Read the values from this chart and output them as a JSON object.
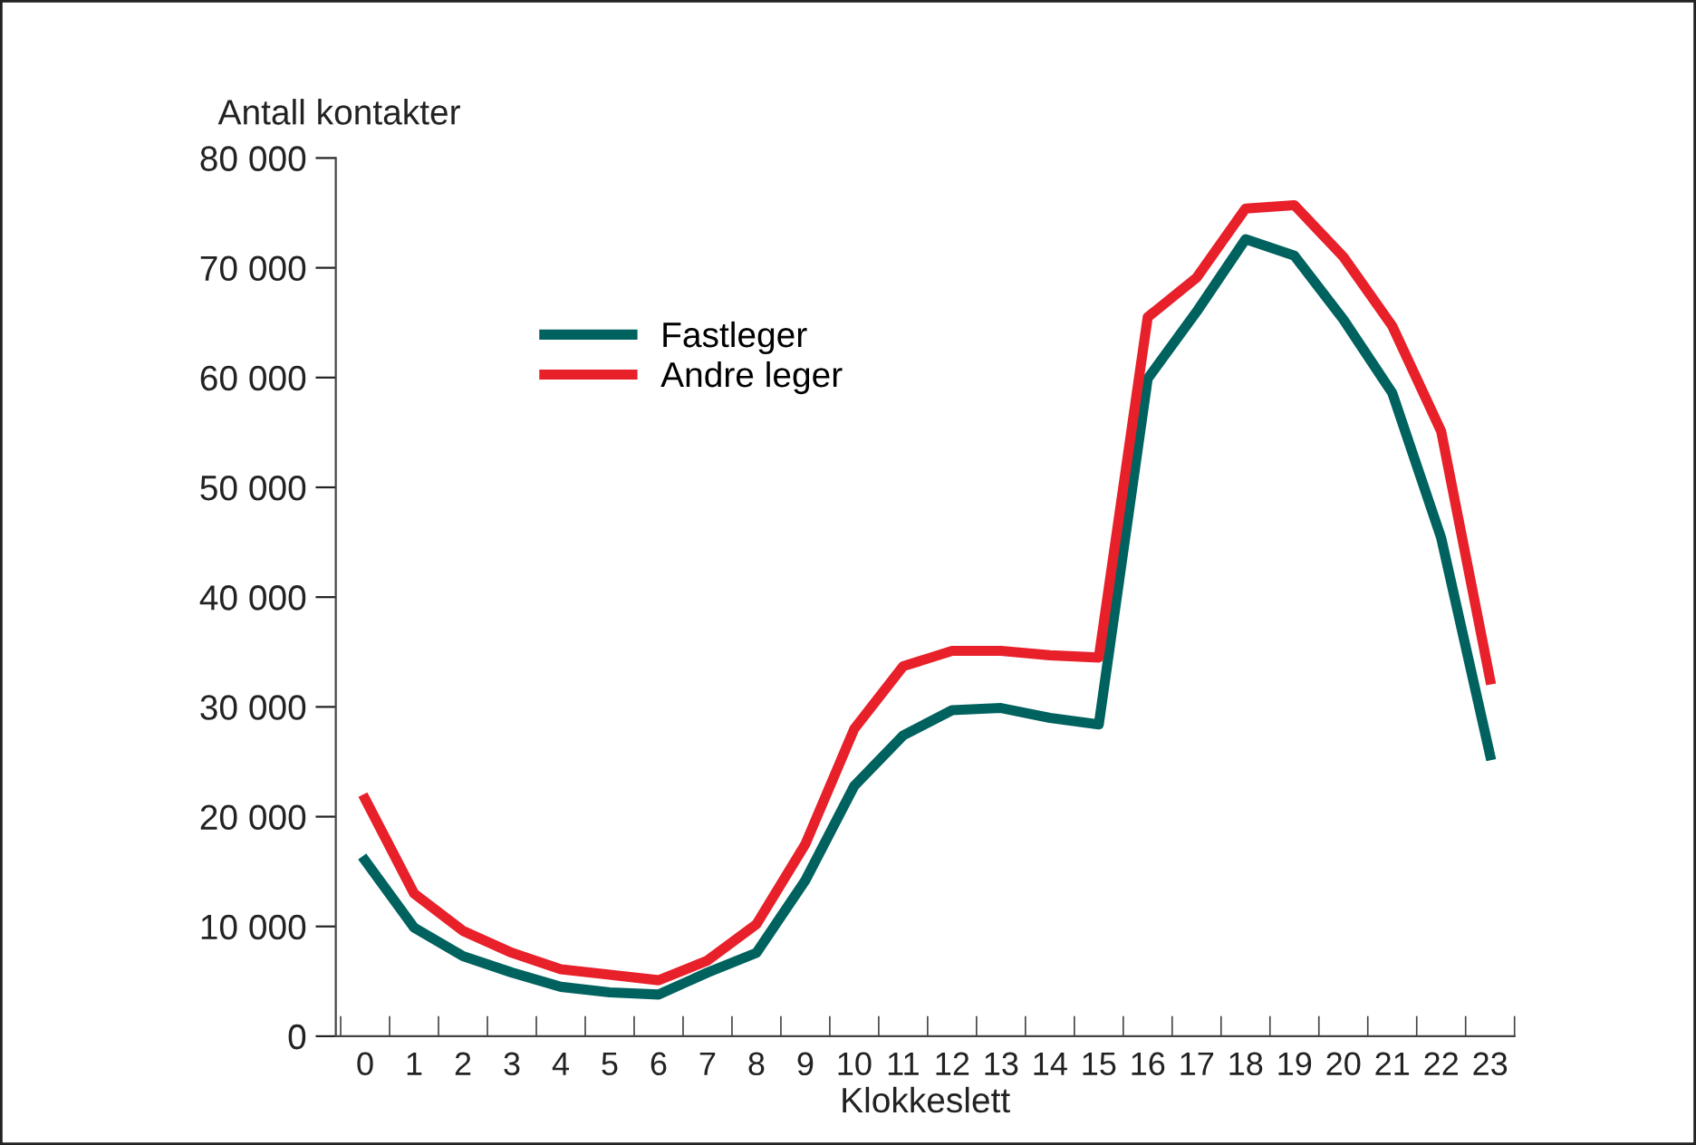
{
  "chart_data": {
    "type": "line",
    "xlabel": "Klokkeslett",
    "ylabel": "Antall kontakter",
    "categories": [
      "0",
      "1",
      "2",
      "3",
      "4",
      "5",
      "6",
      "7",
      "8",
      "9",
      "10",
      "11",
      "12",
      "13",
      "14",
      "15",
      "16",
      "17",
      "18",
      "19",
      "20",
      "21",
      "22",
      "23"
    ],
    "series": [
      {
        "name": "Fastleger",
        "color": "#00625f",
        "values": [
          16000,
          9900,
          7300,
          5800,
          4500,
          4000,
          3800,
          5800,
          7600,
          14200,
          22800,
          27400,
          29700,
          29900,
          29000,
          28400,
          59900,
          66000,
          72600,
          71100,
          65300,
          58600,
          45400,
          25600
        ]
      },
      {
        "name": "Andre leger",
        "color": "#e8202a",
        "values": [
          21600,
          13000,
          9600,
          7600,
          6100,
          5600,
          5100,
          6900,
          10200,
          17500,
          28000,
          33700,
          35100,
          35100,
          34700,
          34500,
          65500,
          69100,
          75400,
          75700,
          71000,
          64700,
          55100,
          32500
        ]
      }
    ],
    "ylim": [
      0,
      80000
    ],
    "yticks": [
      {
        "value": 0,
        "label": "0"
      },
      {
        "value": 10000,
        "label": "10 000"
      },
      {
        "value": 20000,
        "label": "20 000"
      },
      {
        "value": 30000,
        "label": "30 000"
      },
      {
        "value": 40000,
        "label": "40 000"
      },
      {
        "value": 50000,
        "label": "50 000"
      },
      {
        "value": 60000,
        "label": "60 000"
      },
      {
        "value": 70000,
        "label": "70 000"
      },
      {
        "value": 80000,
        "label": "80 000"
      }
    ],
    "grid": false,
    "legend": "top left",
    "marker": "none",
    "line_style": "solid"
  }
}
